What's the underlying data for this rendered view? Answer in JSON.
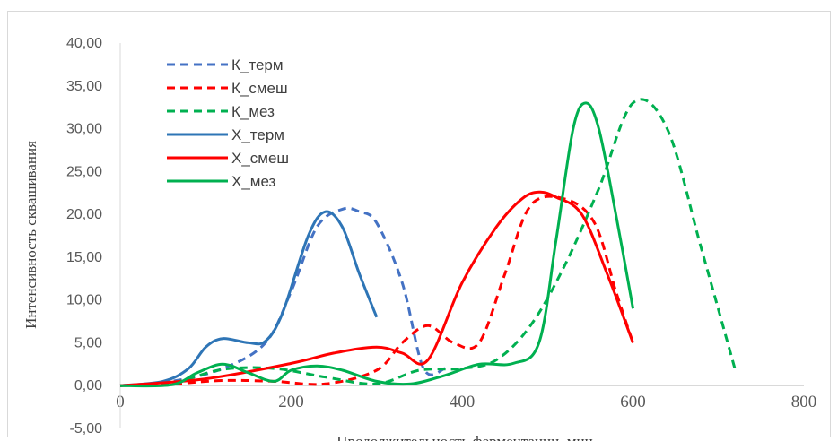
{
  "chart_data": {
    "type": "line",
    "xlabel": "Продолжительность ферментации, мин",
    "ylabel": "Интенсивность сквашивания",
    "xlim": [
      0,
      800
    ],
    "ylim": [
      -5,
      40
    ],
    "x_ticks": [
      "0",
      "200",
      "400",
      "600",
      "800"
    ],
    "y_ticks": [
      "-5,00",
      "0,00",
      "5,00",
      "10,00",
      "15,00",
      "20,00",
      "25,00",
      "30,00",
      "35,00",
      "40,00"
    ],
    "grid": false,
    "legend_position": "top-left",
    "series": [
      {
        "name": "К_терм",
        "color": "#4472C4",
        "dash": true,
        "x": [
          0,
          60,
          120,
          170,
          200,
          230,
          260,
          280,
          300,
          330,
          355,
          380
        ],
        "y": [
          0,
          0.5,
          2,
          5,
          11,
          18.5,
          20.6,
          20.3,
          19,
          12,
          2,
          2
        ]
      },
      {
        "name": "К_смеш",
        "color": "#FF0000",
        "dash": true,
        "x": [
          0,
          60,
          120,
          180,
          240,
          300,
          330,
          360,
          390,
          420,
          450,
          480,
          520,
          555,
          580,
          600
        ],
        "y": [
          0,
          0.2,
          0.6,
          0.5,
          0.2,
          1.8,
          5,
          7,
          5,
          5,
          13,
          21,
          21.8,
          19,
          11,
          5
        ]
      },
      {
        "name": "К_мез",
        "color": "#00B050",
        "dash": true,
        "x": [
          0,
          60,
          120,
          180,
          240,
          300,
          350,
          400,
          440,
          480,
          520,
          560,
          600,
          640,
          680,
          720
        ],
        "y": [
          0,
          0.3,
          1.9,
          2,
          1,
          0.2,
          1.8,
          2,
          3,
          7,
          14,
          23,
          33,
          30,
          16,
          1.7
        ]
      },
      {
        "name": "Х_терм",
        "color": "#2E75B6",
        "dash": false,
        "x": [
          0,
          50,
          80,
          100,
          120,
          150,
          170,
          190,
          220,
          240,
          260,
          280,
          300
        ],
        "y": [
          0,
          0.5,
          2,
          4.5,
          5.5,
          5,
          5.2,
          8.5,
          17.5,
          20.3,
          18.5,
          13,
          8
        ]
      },
      {
        "name": "Х_смеш",
        "color": "#FF0000",
        "dash": false,
        "x": [
          0,
          100,
          200,
          250,
          300,
          330,
          360,
          400,
          440,
          470,
          490,
          510,
          540,
          570,
          600
        ],
        "y": [
          0,
          0.8,
          2.6,
          3.8,
          4.5,
          3.8,
          3,
          12,
          18.5,
          21.8,
          22.6,
          22,
          20,
          13,
          5
        ]
      },
      {
        "name": "Х_мез",
        "color": "#00B050",
        "dash": false,
        "x": [
          0,
          60,
          90,
          120,
          150,
          180,
          200,
          230,
          260,
          300,
          340,
          380,
          420,
          460,
          490,
          510,
          530,
          545,
          560,
          580,
          600
        ],
        "y": [
          0,
          0.1,
          1.5,
          2.5,
          1.5,
          0.5,
          1.8,
          2.3,
          1.8,
          0.5,
          0.2,
          1.2,
          2.5,
          2.6,
          5,
          17,
          30,
          33,
          30,
          20,
          9
        ]
      }
    ]
  }
}
